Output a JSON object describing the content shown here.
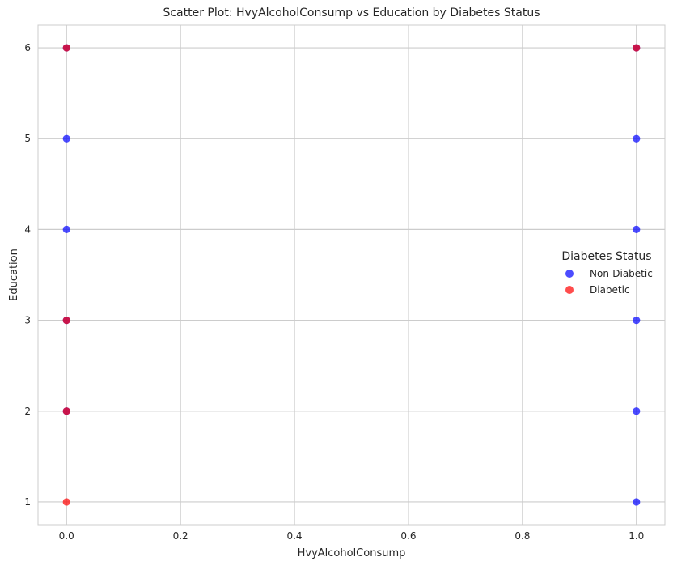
{
  "chart_data": {
    "type": "scatter",
    "title": "Scatter Plot: HvyAlcoholConsump vs Education by Diabetes Status",
    "xlabel": "HvyAlcoholConsump",
    "ylabel": "Education",
    "xlim": [
      -0.05,
      1.05
    ],
    "ylim": [
      0.75,
      6.25
    ],
    "xticks": [
      0.0,
      0.2,
      0.4,
      0.6,
      0.8,
      1.0
    ],
    "xtick_labels": [
      "0.0",
      "0.2",
      "0.4",
      "0.6",
      "0.8",
      "1.0"
    ],
    "yticks": [
      1,
      2,
      3,
      4,
      5,
      6
    ],
    "ytick_labels": [
      "1",
      "2",
      "3",
      "4",
      "5",
      "6"
    ],
    "grid": true,
    "legend": {
      "title": "Diabetes Status",
      "placement": "center-right",
      "entries": [
        {
          "name": "Non-Diabetic",
          "color": "#0000ff"
        },
        {
          "name": "Diabetic",
          "color": "#ff0000"
        }
      ]
    },
    "series": [
      {
        "name": "Non-Diabetic",
        "color": "#0000ff",
        "points": [
          {
            "x": 0,
            "y": 2
          },
          {
            "x": 0,
            "y": 3
          },
          {
            "x": 0,
            "y": 4
          },
          {
            "x": 0,
            "y": 5
          },
          {
            "x": 0,
            "y": 6
          },
          {
            "x": 1,
            "y": 1
          },
          {
            "x": 1,
            "y": 2
          },
          {
            "x": 1,
            "y": 3
          },
          {
            "x": 1,
            "y": 4
          },
          {
            "x": 1,
            "y": 5
          },
          {
            "x": 1,
            "y": 6
          }
        ]
      },
      {
        "name": "Diabetic",
        "color": "#ff0000",
        "points": [
          {
            "x": 0,
            "y": 1
          },
          {
            "x": 0,
            "y": 2
          },
          {
            "x": 0,
            "y": 3
          },
          {
            "x": 0,
            "y": 6
          },
          {
            "x": 1,
            "y": 6
          }
        ]
      }
    ]
  }
}
